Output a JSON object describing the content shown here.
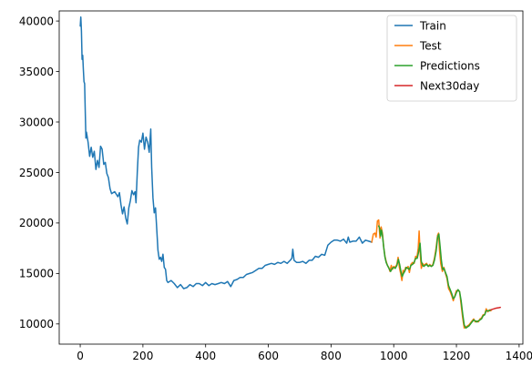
{
  "chart_data": {
    "type": "line",
    "title": "",
    "xlabel": "",
    "ylabel": "",
    "xlim": [
      -67,
      1412
    ],
    "ylim": [
      8000,
      41000
    ],
    "xticks": [
      0,
      200,
      400,
      600,
      800,
      1000,
      1200,
      1400
    ],
    "yticks": [
      10000,
      15000,
      20000,
      25000,
      30000,
      35000,
      40000
    ],
    "grid": false,
    "legend_position": "top-right",
    "series": [
      {
        "name": "Train",
        "color": "#1f77b4",
        "points": [
          [
            0,
            39500
          ],
          [
            2,
            40400
          ],
          [
            4,
            39000
          ],
          [
            6,
            36200
          ],
          [
            8,
            36600
          ],
          [
            10,
            35200
          ],
          [
            12,
            34000
          ],
          [
            14,
            33800
          ],
          [
            16,
            31000
          ],
          [
            18,
            28400
          ],
          [
            20,
            29000
          ],
          [
            25,
            28000
          ],
          [
            30,
            26600
          ],
          [
            35,
            27500
          ],
          [
            40,
            26500
          ],
          [
            45,
            27100
          ],
          [
            50,
            25300
          ],
          [
            55,
            26200
          ],
          [
            60,
            25500
          ],
          [
            65,
            27600
          ],
          [
            70,
            27300
          ],
          [
            75,
            25800
          ],
          [
            80,
            26000
          ],
          [
            85,
            24900
          ],
          [
            90,
            24500
          ],
          [
            95,
            23400
          ],
          [
            100,
            22900
          ],
          [
            110,
            23100
          ],
          [
            120,
            22600
          ],
          [
            125,
            23000
          ],
          [
            130,
            21800
          ],
          [
            135,
            20900
          ],
          [
            140,
            21600
          ],
          [
            145,
            20500
          ],
          [
            150,
            19900
          ],
          [
            155,
            21500
          ],
          [
            160,
            22200
          ],
          [
            165,
            23200
          ],
          [
            170,
            22800
          ],
          [
            175,
            23100
          ],
          [
            178,
            22000
          ],
          [
            182,
            25000
          ],
          [
            186,
            27500
          ],
          [
            190,
            28200
          ],
          [
            195,
            28000
          ],
          [
            200,
            28900
          ],
          [
            205,
            27300
          ],
          [
            210,
            28500
          ],
          [
            215,
            28000
          ],
          [
            220,
            27000
          ],
          [
            225,
            29300
          ],
          [
            228,
            25500
          ],
          [
            232,
            22500
          ],
          [
            236,
            21000
          ],
          [
            240,
            21500
          ],
          [
            244,
            19500
          ],
          [
            248,
            17300
          ],
          [
            252,
            16400
          ],
          [
            256,
            16600
          ],
          [
            260,
            16200
          ],
          [
            264,
            16900
          ],
          [
            268,
            15600
          ],
          [
            272,
            15400
          ],
          [
            276,
            14300
          ],
          [
            280,
            14100
          ],
          [
            290,
            14300
          ],
          [
            300,
            14000
          ],
          [
            310,
            13600
          ],
          [
            320,
            13900
          ],
          [
            330,
            13500
          ],
          [
            340,
            13600
          ],
          [
            350,
            13900
          ],
          [
            360,
            13700
          ],
          [
            370,
            14000
          ],
          [
            380,
            14000
          ],
          [
            390,
            13800
          ],
          [
            400,
            14100
          ],
          [
            410,
            13800
          ],
          [
            420,
            14000
          ],
          [
            430,
            13900
          ],
          [
            440,
            14000
          ],
          [
            450,
            14100
          ],
          [
            460,
            14000
          ],
          [
            470,
            14200
          ],
          [
            480,
            13700
          ],
          [
            490,
            14300
          ],
          [
            500,
            14400
          ],
          [
            510,
            14600
          ],
          [
            520,
            14600
          ],
          [
            530,
            14900
          ],
          [
            540,
            15000
          ],
          [
            550,
            15100
          ],
          [
            560,
            15300
          ],
          [
            570,
            15500
          ],
          [
            580,
            15500
          ],
          [
            590,
            15800
          ],
          [
            600,
            15900
          ],
          [
            610,
            16000
          ],
          [
            620,
            15900
          ],
          [
            630,
            16100
          ],
          [
            640,
            16000
          ],
          [
            650,
            16200
          ],
          [
            660,
            16000
          ],
          [
            670,
            16300
          ],
          [
            675,
            16500
          ],
          [
            678,
            17400
          ],
          [
            682,
            16300
          ],
          [
            690,
            16100
          ],
          [
            700,
            16100
          ],
          [
            710,
            16200
          ],
          [
            720,
            16000
          ],
          [
            730,
            16300
          ],
          [
            740,
            16300
          ],
          [
            750,
            16700
          ],
          [
            760,
            16600
          ],
          [
            770,
            16900
          ],
          [
            780,
            16800
          ],
          [
            790,
            17800
          ],
          [
            800,
            18100
          ],
          [
            810,
            18300
          ],
          [
            820,
            18300
          ],
          [
            830,
            18200
          ],
          [
            840,
            18400
          ],
          [
            850,
            18000
          ],
          [
            855,
            18600
          ],
          [
            860,
            18100
          ],
          [
            870,
            18200
          ],
          [
            880,
            18200
          ],
          [
            890,
            18600
          ],
          [
            900,
            18000
          ],
          [
            910,
            18300
          ],
          [
            920,
            18200
          ],
          [
            930,
            18100
          ]
        ]
      },
      {
        "name": "Test",
        "color": "#ff7f0e",
        "points": [
          [
            930,
            18100
          ],
          [
            935,
            18900
          ],
          [
            940,
            19000
          ],
          [
            944,
            18600
          ],
          [
            948,
            20200
          ],
          [
            952,
            20300
          ],
          [
            956,
            18500
          ],
          [
            960,
            19600
          ],
          [
            964,
            19000
          ],
          [
            968,
            17600
          ],
          [
            972,
            16700
          ],
          [
            976,
            16200
          ],
          [
            980,
            15800
          ],
          [
            984,
            15600
          ],
          [
            988,
            15200
          ],
          [
            992,
            15800
          ],
          [
            996,
            15400
          ],
          [
            1000,
            15700
          ],
          [
            1005,
            15600
          ],
          [
            1010,
            15900
          ],
          [
            1014,
            16600
          ],
          [
            1018,
            15600
          ],
          [
            1022,
            15000
          ],
          [
            1026,
            14300
          ],
          [
            1030,
            15300
          ],
          [
            1034,
            15200
          ],
          [
            1038,
            15600
          ],
          [
            1042,
            15500
          ],
          [
            1046,
            15700
          ],
          [
            1050,
            15100
          ],
          [
            1055,
            15900
          ],
          [
            1060,
            16100
          ],
          [
            1065,
            16000
          ],
          [
            1070,
            16700
          ],
          [
            1074,
            16600
          ],
          [
            1078,
            17500
          ],
          [
            1081,
            19200
          ],
          [
            1084,
            17200
          ],
          [
            1088,
            15500
          ],
          [
            1092,
            16000
          ],
          [
            1096,
            15800
          ],
          [
            1100,
            15900
          ],
          [
            1105,
            16000
          ],
          [
            1110,
            15700
          ],
          [
            1115,
            15900
          ],
          [
            1120,
            15700
          ],
          [
            1125,
            15900
          ],
          [
            1130,
            16500
          ],
          [
            1135,
            17500
          ],
          [
            1140,
            18800
          ],
          [
            1143,
            19000
          ],
          [
            1146,
            17300
          ],
          [
            1150,
            16000
          ],
          [
            1155,
            15200
          ],
          [
            1160,
            15600
          ],
          [
            1165,
            15000
          ],
          [
            1170,
            14500
          ],
          [
            1175,
            13500
          ],
          [
            1180,
            13200
          ],
          [
            1185,
            12800
          ],
          [
            1190,
            12300
          ],
          [
            1195,
            12800
          ],
          [
            1200,
            13300
          ],
          [
            1205,
            13300
          ],
          [
            1210,
            13200
          ],
          [
            1215,
            11900
          ],
          [
            1220,
            10600
          ],
          [
            1225,
            9600
          ],
          [
            1230,
            9700
          ],
          [
            1235,
            9800
          ],
          [
            1240,
            9900
          ],
          [
            1245,
            10100
          ],
          [
            1250,
            10300
          ],
          [
            1255,
            10500
          ],
          [
            1260,
            10200
          ],
          [
            1265,
            10300
          ],
          [
            1270,
            10200
          ],
          [
            1275,
            10500
          ],
          [
            1280,
            10600
          ],
          [
            1285,
            10900
          ],
          [
            1290,
            10900
          ],
          [
            1295,
            11500
          ],
          [
            1300,
            11200
          ],
          [
            1305,
            11400
          ],
          [
            1310,
            11300
          ]
        ]
      },
      {
        "name": "Predictions",
        "color": "#2ca02c",
        "points": [
          [
            952,
            19700
          ],
          [
            955,
            19500
          ],
          [
            958,
            18700
          ],
          [
            961,
            19300
          ],
          [
            964,
            18800
          ],
          [
            968,
            17600
          ],
          [
            972,
            16600
          ],
          [
            976,
            16100
          ],
          [
            980,
            15800
          ],
          [
            985,
            15500
          ],
          [
            990,
            15200
          ],
          [
            995,
            15500
          ],
          [
            1000,
            15600
          ],
          [
            1005,
            15500
          ],
          [
            1010,
            15800
          ],
          [
            1015,
            16400
          ],
          [
            1019,
            15900
          ],
          [
            1023,
            15200
          ],
          [
            1027,
            14700
          ],
          [
            1031,
            15000
          ],
          [
            1035,
            15200
          ],
          [
            1040,
            15600
          ],
          [
            1045,
            15500
          ],
          [
            1050,
            15400
          ],
          [
            1055,
            15800
          ],
          [
            1060,
            15900
          ],
          [
            1065,
            16100
          ],
          [
            1070,
            16500
          ],
          [
            1075,
            16500
          ],
          [
            1080,
            17200
          ],
          [
            1084,
            18000
          ],
          [
            1088,
            16200
          ],
          [
            1092,
            15800
          ],
          [
            1096,
            15700
          ],
          [
            1100,
            15800
          ],
          [
            1105,
            15900
          ],
          [
            1110,
            15700
          ],
          [
            1115,
            15800
          ],
          [
            1120,
            15700
          ],
          [
            1125,
            15800
          ],
          [
            1130,
            16300
          ],
          [
            1135,
            17200
          ],
          [
            1140,
            18600
          ],
          [
            1144,
            18900
          ],
          [
            1148,
            17700
          ],
          [
            1152,
            16300
          ],
          [
            1156,
            15400
          ],
          [
            1160,
            15500
          ],
          [
            1165,
            15100
          ],
          [
            1170,
            14700
          ],
          [
            1175,
            13800
          ],
          [
            1180,
            13400
          ],
          [
            1185,
            13000
          ],
          [
            1190,
            12500
          ],
          [
            1195,
            12700
          ],
          [
            1200,
            13100
          ],
          [
            1205,
            13400
          ],
          [
            1210,
            13200
          ],
          [
            1215,
            12300
          ],
          [
            1220,
            11000
          ],
          [
            1225,
            9900
          ],
          [
            1230,
            9600
          ],
          [
            1235,
            9700
          ],
          [
            1240,
            9800
          ],
          [
            1245,
            10000
          ],
          [
            1250,
            10200
          ],
          [
            1255,
            10400
          ],
          [
            1260,
            10300
          ],
          [
            1265,
            10200
          ],
          [
            1270,
            10300
          ],
          [
            1275,
            10400
          ],
          [
            1280,
            10500
          ],
          [
            1285,
            10800
          ],
          [
            1290,
            10900
          ],
          [
            1295,
            11300
          ],
          [
            1300,
            11300
          ],
          [
            1305,
            11300
          ],
          [
            1310,
            11400
          ]
        ]
      },
      {
        "name": "Next30day",
        "color": "#d62728",
        "points": [
          [
            1310,
            11400
          ],
          [
            1315,
            11450
          ],
          [
            1320,
            11500
          ],
          [
            1325,
            11550
          ],
          [
            1330,
            11580
          ],
          [
            1335,
            11610
          ],
          [
            1340,
            11640
          ]
        ]
      }
    ]
  }
}
